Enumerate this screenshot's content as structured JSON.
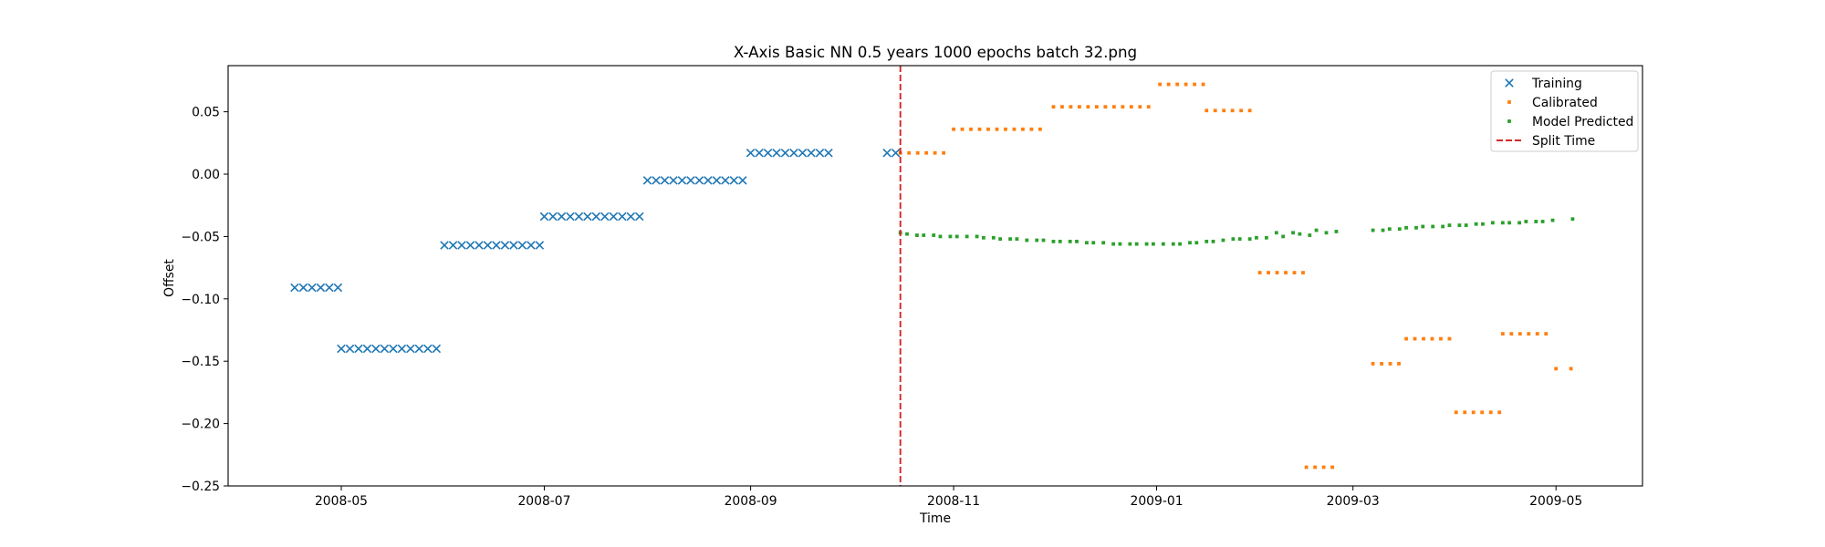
{
  "chart_data": {
    "type": "scatter",
    "title": "X-Axis Basic NN 0.5 years 1000 epochs batch 32.png",
    "xlabel": "Time",
    "ylabel": "Offset",
    "xaxis": {
      "type": "date",
      "range": [
        "2008-03-28",
        "2009-05-27"
      ],
      "ticks": [
        "2008-05-01",
        "2008-07-01",
        "2008-09-01",
        "2008-11-01",
        "2009-01-01",
        "2009-03-01",
        "2009-05-01"
      ],
      "tick_labels": [
        "2008-05",
        "2008-07",
        "2008-09",
        "2008-11",
        "2009-01",
        "2009-03",
        "2009-05"
      ]
    },
    "yaxis": {
      "range": [
        -0.25,
        0.087
      ],
      "ticks": [
        0.05,
        0.0,
        -0.05,
        -0.1,
        -0.15,
        -0.2,
        -0.25
      ],
      "tick_labels": [
        "0.05",
        "0.00",
        "−0.05",
        "−0.10",
        "−0.15",
        "−0.20",
        "−0.25"
      ]
    },
    "grid": false,
    "legend_position": "top-right",
    "split_time": "2008-10-16",
    "series": [
      {
        "name": "Training",
        "marker": "x",
        "color": "#1f77b4",
        "segments": [
          {
            "start": "2008-04-17",
            "end": "2008-04-30",
            "step_days": 2.6,
            "y": -0.091
          },
          {
            "start": "2008-05-01",
            "end": "2008-05-31",
            "step_days": 2.6,
            "y": -0.14
          },
          {
            "start": "2008-06-01",
            "end": "2008-06-30",
            "step_days": 2.6,
            "y": -0.057
          },
          {
            "start": "2008-07-01",
            "end": "2008-07-31",
            "step_days": 2.6,
            "y": -0.034
          },
          {
            "start": "2008-08-01",
            "end": "2008-08-31",
            "step_days": 2.6,
            "y": -0.005
          },
          {
            "start": "2008-09-01",
            "end": "2008-09-26",
            "step_days": 2.6,
            "y": 0.017
          },
          {
            "start": "2008-10-12",
            "end": "2008-10-16",
            "step_days": 2.6,
            "y": 0.017
          }
        ]
      },
      {
        "name": "Calibrated",
        "marker": "dot",
        "color": "#ff7f0e",
        "segments": [
          {
            "start": "2008-10-16",
            "end": "2008-10-29",
            "step_days": 2.6,
            "y": 0.017
          },
          {
            "start": "2008-11-01",
            "end": "2008-11-29",
            "step_days": 2.6,
            "y": 0.036
          },
          {
            "start": "2008-12-01",
            "end": "2008-12-31",
            "step_days": 2.6,
            "y": 0.054
          },
          {
            "start": "2009-01-02",
            "end": "2009-01-15",
            "step_days": 2.6,
            "y": 0.072
          },
          {
            "start": "2009-01-16",
            "end": "2009-01-31",
            "step_days": 2.6,
            "y": 0.051
          },
          {
            "start": "2009-02-01",
            "end": "2009-02-14",
            "step_days": 2.6,
            "y": -0.079
          },
          {
            "start": "2009-02-15",
            "end": "2009-02-24",
            "step_days": 2.6,
            "y": -0.235
          },
          {
            "start": "2009-03-07",
            "end": "2009-03-16",
            "step_days": 2.6,
            "y": -0.152
          },
          {
            "start": "2009-03-17",
            "end": "2009-03-31",
            "step_days": 2.6,
            "y": -0.132
          },
          {
            "start": "2009-04-01",
            "end": "2009-04-14",
            "step_days": 2.6,
            "y": -0.191
          },
          {
            "start": "2009-04-15",
            "end": "2009-04-28",
            "step_days": 2.6,
            "y": -0.128
          },
          {
            "start": "2009-05-01",
            "end": "2009-05-06",
            "step_days": 4.5,
            "y": -0.156
          }
        ]
      },
      {
        "name": "Model Predicted",
        "marker": "dot",
        "color": "#2ca02c",
        "points": [
          [
            "2008-10-16",
            -0.047
          ],
          [
            "2008-10-18",
            -0.048
          ],
          [
            "2008-10-21",
            -0.049
          ],
          [
            "2008-10-23",
            -0.049
          ],
          [
            "2008-10-26",
            -0.049
          ],
          [
            "2008-10-28",
            -0.05
          ],
          [
            "2008-10-31",
            -0.05
          ],
          [
            "2008-11-02",
            -0.05
          ],
          [
            "2008-11-05",
            -0.05
          ],
          [
            "2008-11-08",
            -0.05
          ],
          [
            "2008-11-10",
            -0.051
          ],
          [
            "2008-11-13",
            -0.051
          ],
          [
            "2008-11-15",
            -0.052
          ],
          [
            "2008-11-18",
            -0.052
          ],
          [
            "2008-11-20",
            -0.052
          ],
          [
            "2008-11-23",
            -0.053
          ],
          [
            "2008-11-26",
            -0.053
          ],
          [
            "2008-11-28",
            -0.053
          ],
          [
            "2008-12-01",
            -0.054
          ],
          [
            "2008-12-03",
            -0.054
          ],
          [
            "2008-12-06",
            -0.054
          ],
          [
            "2008-12-08",
            -0.054
          ],
          [
            "2008-12-11",
            -0.055
          ],
          [
            "2008-12-13",
            -0.055
          ],
          [
            "2008-12-16",
            -0.055
          ],
          [
            "2008-12-19",
            -0.056
          ],
          [
            "2008-12-21",
            -0.056
          ],
          [
            "2008-12-24",
            -0.056
          ],
          [
            "2008-12-26",
            -0.056
          ],
          [
            "2008-12-29",
            -0.056
          ],
          [
            "2008-12-31",
            -0.056
          ],
          [
            "2009-01-03",
            -0.056
          ],
          [
            "2009-01-06",
            -0.056
          ],
          [
            "2009-01-08",
            -0.056
          ],
          [
            "2009-01-11",
            -0.055
          ],
          [
            "2009-01-13",
            -0.055
          ],
          [
            "2009-01-16",
            -0.054
          ],
          [
            "2009-01-18",
            -0.054
          ],
          [
            "2009-01-21",
            -0.053
          ],
          [
            "2009-01-24",
            -0.052
          ],
          [
            "2009-01-26",
            -0.052
          ],
          [
            "2009-01-29",
            -0.052
          ],
          [
            "2009-01-31",
            -0.051
          ],
          [
            "2009-02-03",
            -0.051
          ],
          [
            "2009-02-06",
            -0.047
          ],
          [
            "2009-02-08",
            -0.05
          ],
          [
            "2009-02-11",
            -0.047
          ],
          [
            "2009-02-13",
            -0.048
          ],
          [
            "2009-02-16",
            -0.049
          ],
          [
            "2009-02-18",
            -0.045
          ],
          [
            "2009-02-21",
            -0.047
          ],
          [
            "2009-02-24",
            -0.046
          ],
          [
            "2009-03-07",
            -0.045
          ],
          [
            "2009-03-10",
            -0.045
          ],
          [
            "2009-03-12",
            -0.044
          ],
          [
            "2009-03-15",
            -0.044
          ],
          [
            "2009-03-17",
            -0.043
          ],
          [
            "2009-03-20",
            -0.043
          ],
          [
            "2009-03-22",
            -0.042
          ],
          [
            "2009-03-25",
            -0.042
          ],
          [
            "2009-03-28",
            -0.042
          ],
          [
            "2009-03-30",
            -0.041
          ],
          [
            "2009-04-02",
            -0.041
          ],
          [
            "2009-04-04",
            -0.041
          ],
          [
            "2009-04-07",
            -0.04
          ],
          [
            "2009-04-09",
            -0.04
          ],
          [
            "2009-04-12",
            -0.039
          ],
          [
            "2009-04-15",
            -0.039
          ],
          [
            "2009-04-17",
            -0.039
          ],
          [
            "2009-04-20",
            -0.039
          ],
          [
            "2009-04-22",
            -0.038
          ],
          [
            "2009-04-25",
            -0.038
          ],
          [
            "2009-04-27",
            -0.038
          ],
          [
            "2009-04-30",
            -0.037
          ],
          [
            "2009-05-06",
            -0.036
          ]
        ]
      }
    ],
    "reference_lines": [
      {
        "name": "Split Time",
        "orientation": "vertical",
        "x": "2008-10-16",
        "style": "dashed",
        "color": "#d62728"
      }
    ]
  }
}
